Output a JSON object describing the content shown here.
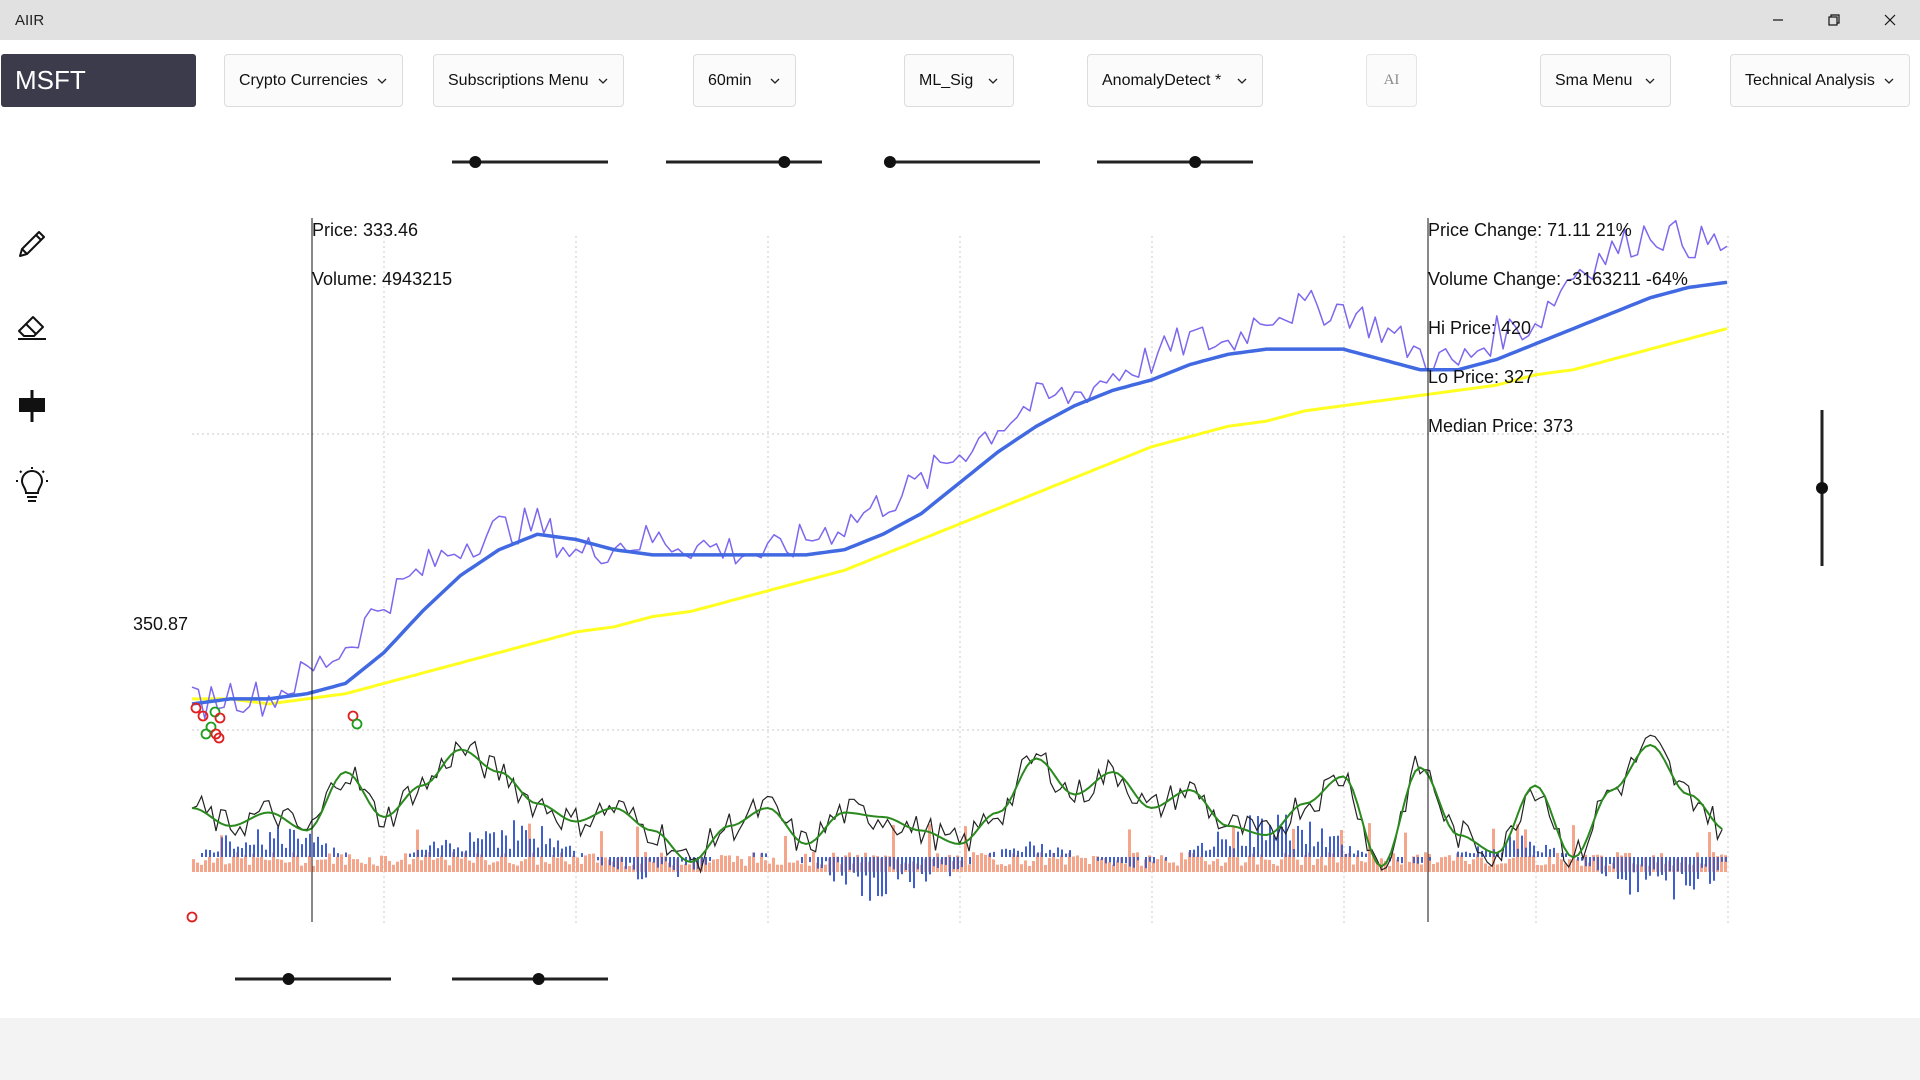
{
  "window": {
    "title": "AIIR",
    "controls": [
      "minimize-icon",
      "restore-icon",
      "close-icon"
    ]
  },
  "toolbar": {
    "symbol": "MSFT",
    "menus": [
      {
        "label": "Crypto Currencies"
      },
      {
        "label": "Subscriptions Menu"
      },
      {
        "label": "60min"
      },
      {
        "label": "ML_Sig"
      },
      {
        "label": "AnomalyDetect *"
      },
      {
        "label": "Sma Menu"
      },
      {
        "label": "Technical Analysis"
      }
    ],
    "ai_label": "AI"
  },
  "sliders": {
    "top": [
      0.12,
      0.78,
      0.0,
      0.64
    ],
    "bottom": [
      0.33,
      0.56
    ],
    "vertical": 0.5
  },
  "tools": [
    "pencil-icon",
    "eraser-icon",
    "candlestick-icon",
    "lightbulb-icon"
  ],
  "readouts": {
    "price": "Price: 333.46",
    "volume": "Volume: 4943215",
    "price_change": "Price Change: 71.11 21%",
    "volume_change": "Volume Change: -3163211 -64%",
    "hi_price": "Hi Price: 420",
    "lo_price": "Lo Price: 327",
    "median_price": "Median Price: 373"
  },
  "chart_data": {
    "type": "line",
    "price_axis_label": "350.87",
    "series": [
      {
        "color": "#7b68ee",
        "values": [
          327,
          329,
          328,
          333,
          338,
          347,
          353,
          358,
          361,
          362,
          356,
          358,
          359,
          358,
          357,
          356,
          359,
          362,
          366,
          370,
          376,
          381,
          386,
          387,
          391,
          394,
          398,
          397,
          403,
          404,
          404,
          400,
          395,
          393,
          399,
          401,
          411,
          415,
          419,
          417,
          416
        ]
      },
      {
        "color": "#4169e1",
        "values": [
          327,
          328,
          328,
          329,
          331,
          337,
          345,
          352,
          357,
          360,
          359,
          357,
          356,
          356,
          356,
          356,
          356,
          357,
          360,
          364,
          370,
          376,
          381,
          385,
          388,
          390,
          393,
          395,
          396,
          396,
          396,
          394,
          392,
          392,
          394,
          397,
          400,
          403,
          406,
          408,
          409
        ]
      },
      {
        "color": "#ffff20",
        "values": [
          328,
          328,
          327,
          328,
          329,
          331,
          333,
          335,
          337,
          339,
          341,
          342,
          344,
          345,
          347,
          349,
          351,
          353,
          356,
          359,
          362,
          365,
          368,
          371,
          374,
          377,
          379,
          381,
          382,
          384,
          385,
          386,
          387,
          388,
          389,
          391,
          392,
          394,
          396,
          398,
          400
        ]
      }
    ],
    "oscillator": {
      "fast_color": "#222222",
      "slow_color": "#2a8a1e",
      "values": [
        0.3,
        0.1,
        0.25,
        0.05,
        0.7,
        0.2,
        0.55,
        0.95,
        0.7,
        0.35,
        0.15,
        0.3,
        0.05,
        -0.3,
        0.1,
        0.3,
        -0.1,
        0.25,
        0.2,
        0.05,
        -0.1,
        0.25,
        0.85,
        0.45,
        0.7,
        0.3,
        0.5,
        0.1,
        0.0,
        0.35,
        0.65,
        -0.35,
        0.75,
        0.0,
        -0.2,
        0.55,
        -0.25,
        0.5,
        1.0,
        0.45,
        0.05
      ]
    },
    "markers": {
      "buy_color": "#1e9e1e",
      "sell_color": "#e02020"
    }
  }
}
